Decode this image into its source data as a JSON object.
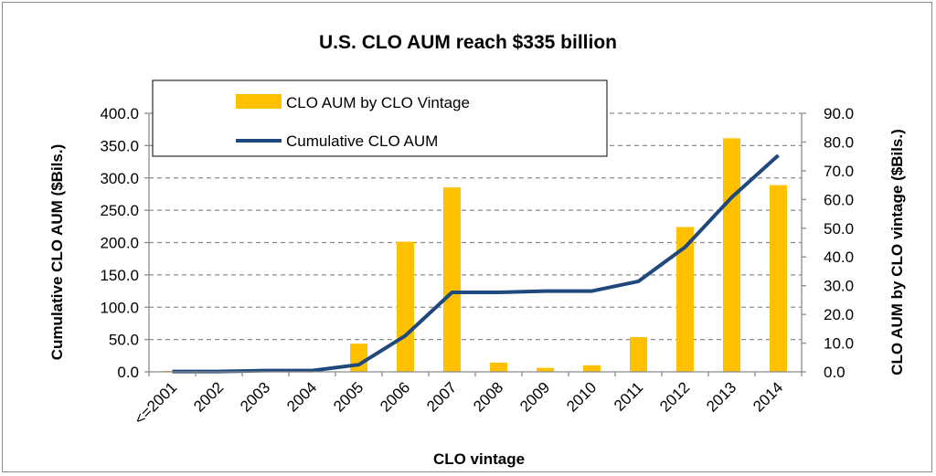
{
  "chart_data": {
    "type": "bar",
    "title": "U.S. CLO AUM reach $335 billion",
    "xlabel": "CLO vintage",
    "ylabel_left": "Cumulative CLO AUM ($Bils.)",
    "ylabel_right": "CLO AUM by CLO vintage ($Bils.)",
    "categories": [
      "<=2001",
      "2002",
      "2003",
      "2004",
      "2005",
      "2006",
      "2007",
      "2008",
      "2009",
      "2010",
      "2011",
      "2012",
      "2013",
      "2014"
    ],
    "series": [
      {
        "name": "CLO AUM by CLO Vintage",
        "type": "bar",
        "axis": "right",
        "color": "#FFC000",
        "values": [
          0.3,
          0,
          0.1,
          0.1,
          9.8,
          45.3,
          64.2,
          3.2,
          1.4,
          2.3,
          12.1,
          50.4,
          81.3,
          65.0
        ]
      },
      {
        "name": "Cumulative CLO AUM",
        "type": "line",
        "axis": "left",
        "color": "#1F497D",
        "values": [
          0.5,
          0.5,
          2,
          2,
          11,
          56,
          123,
          123,
          125,
          125,
          140,
          193,
          270,
          335
        ]
      }
    ],
    "ylim_left": [
      0,
      400
    ],
    "ylim_right": [
      0,
      90
    ],
    "yticks_left": [
      "0.0",
      "50.0",
      "100.0",
      "150.0",
      "200.0",
      "250.0",
      "300.0",
      "350.0",
      "400.0"
    ],
    "yticks_right": [
      "0.0",
      "10.0",
      "20.0",
      "30.0",
      "40.0",
      "50.0",
      "60.0",
      "70.0",
      "80.0",
      "90.0"
    ],
    "grid": "horizontal dashed",
    "legend_position": "top-left"
  }
}
